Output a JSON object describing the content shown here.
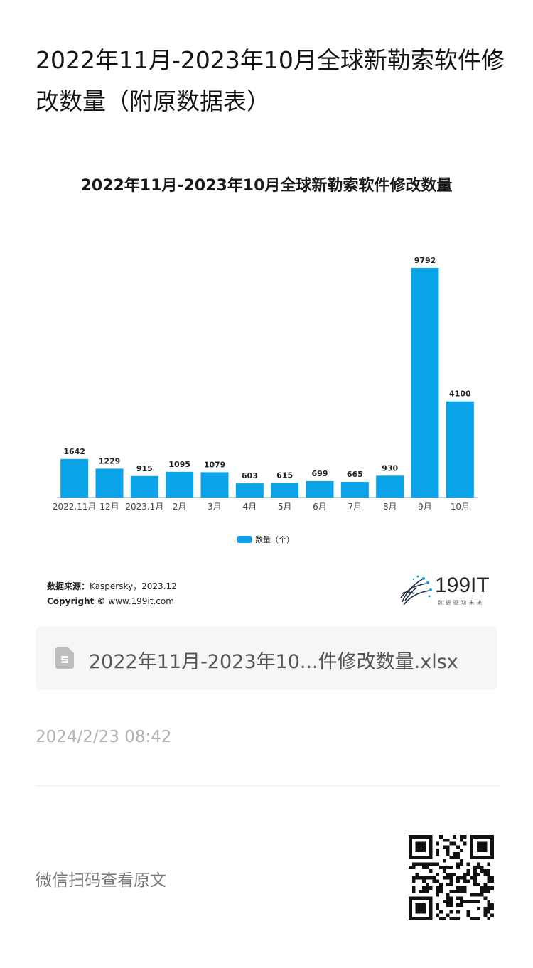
{
  "page": {
    "title": "2022年11月-2023年10月全球新勒索软件修改数量（附原数据表）"
  },
  "chart_data": {
    "type": "bar",
    "title": "2022年11月-2023年10月全球新勒索软件修改数量",
    "categories": [
      "2022.11月",
      "12月",
      "2023.1月",
      "2月",
      "3月",
      "4月",
      "5月",
      "6月",
      "7月",
      "8月",
      "9月",
      "10月"
    ],
    "series": [
      {
        "name": "数量（个）",
        "values": [
          1642,
          1229,
          915,
          1095,
          1079,
          603,
          615,
          699,
          665,
          930,
          9792,
          4100
        ]
      }
    ],
    "ylim": [
      0,
      10000
    ],
    "grid": false,
    "legend_position": "bottom",
    "bar_color": "#0ba3e8"
  },
  "source": {
    "label": "数据来源：",
    "value": "Kaspersky，2023.12",
    "copyright_label": "Copyright ©",
    "copyright_value": "www.199it.com"
  },
  "logo": {
    "text": "199IT",
    "tagline": "数据驱动未来"
  },
  "file": {
    "name": "2022年11月-2023年10...件修改数量.xlsx",
    "icon": "spreadsheet-file-icon"
  },
  "timestamp": "2024/2/23 08:42",
  "footer": {
    "scan_text": "微信扫码查看原文",
    "qr_icon": "qr-code-icon"
  }
}
